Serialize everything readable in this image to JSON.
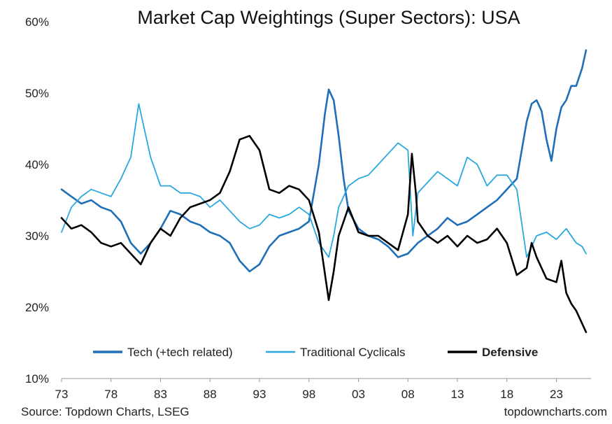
{
  "chart_data": {
    "type": "line",
    "title": "Market Cap Weightings (Super Sectors): USA",
    "xlabel": "",
    "ylabel": "",
    "xlim": [
      1973,
      2026.5
    ],
    "ylim": [
      10,
      60
    ],
    "x_ticks": [
      1973,
      1978,
      1983,
      1988,
      1993,
      1998,
      2003,
      2008,
      2013,
      2018,
      2023
    ],
    "x_tick_labels": [
      "73",
      "78",
      "83",
      "88",
      "93",
      "98",
      "03",
      "08",
      "13",
      "18",
      "23"
    ],
    "y_ticks": [
      10,
      20,
      30,
      40,
      50,
      60
    ],
    "y_tick_labels": [
      "10%",
      "20%",
      "30%",
      "40%",
      "50%",
      "60%"
    ],
    "grid": false,
    "legend_position": "bottom",
    "series": [
      {
        "name": "Tech (+tech related)",
        "color": "#1F6FB8",
        "bold": false,
        "points": [
          [
            1973,
            36.5
          ],
          [
            1974,
            35.5
          ],
          [
            1975,
            34.5
          ],
          [
            1976,
            35
          ],
          [
            1977,
            34
          ],
          [
            1978,
            33.5
          ],
          [
            1979,
            32
          ],
          [
            1980,
            29
          ],
          [
            1981,
            27.5
          ],
          [
            1982,
            29
          ],
          [
            1983,
            31
          ],
          [
            1984,
            33.5
          ],
          [
            1985,
            33
          ],
          [
            1986,
            32
          ],
          [
            1987,
            31.5
          ],
          [
            1988,
            30.5
          ],
          [
            1989,
            30
          ],
          [
            1990,
            29
          ],
          [
            1991,
            26.5
          ],
          [
            1992,
            25
          ],
          [
            1993,
            26
          ],
          [
            1994,
            28.5
          ],
          [
            1995,
            30
          ],
          [
            1996,
            30.5
          ],
          [
            1997,
            31
          ],
          [
            1998,
            32
          ],
          [
            1999,
            40
          ],
          [
            1999.6,
            47
          ],
          [
            2000,
            50.5
          ],
          [
            2000.5,
            49
          ],
          [
            2001,
            44
          ],
          [
            2001.5,
            38
          ],
          [
            2002,
            33.5
          ],
          [
            2003,
            31
          ],
          [
            2004,
            30
          ],
          [
            2005,
            29.5
          ],
          [
            2006,
            28.5
          ],
          [
            2007,
            27
          ],
          [
            2008,
            27.5
          ],
          [
            2009,
            29
          ],
          [
            2010,
            30
          ],
          [
            2011,
            31
          ],
          [
            2012,
            32.5
          ],
          [
            2013,
            31.5
          ],
          [
            2014,
            32
          ],
          [
            2015,
            33
          ],
          [
            2016,
            34
          ],
          [
            2017,
            35
          ],
          [
            2018,
            36.5
          ],
          [
            2019,
            38
          ],
          [
            2020,
            46
          ],
          [
            2020.5,
            48.5
          ],
          [
            2021,
            49
          ],
          [
            2021.5,
            47.5
          ],
          [
            2022,
            43.5
          ],
          [
            2022.5,
            40.5
          ],
          [
            2023,
            45
          ],
          [
            2023.5,
            48
          ],
          [
            2024,
            49
          ],
          [
            2024.5,
            51
          ],
          [
            2025,
            51
          ],
          [
            2025.6,
            53.5
          ],
          [
            2026,
            56
          ]
        ]
      },
      {
        "name": "Traditional Cyclicals",
        "color": "#29A8E0",
        "bold": false,
        "points": [
          [
            1973,
            30.5
          ],
          [
            1974,
            34
          ],
          [
            1975,
            35.5
          ],
          [
            1976,
            36.5
          ],
          [
            1977,
            36
          ],
          [
            1978,
            35.5
          ],
          [
            1979,
            38
          ],
          [
            1980,
            41
          ],
          [
            1980.8,
            48.5
          ],
          [
            1981.2,
            46
          ],
          [
            1982,
            41
          ],
          [
            1983,
            37
          ],
          [
            1984,
            37
          ],
          [
            1985,
            36
          ],
          [
            1986,
            36
          ],
          [
            1987,
            35.5
          ],
          [
            1988,
            34
          ],
          [
            1989,
            35
          ],
          [
            1990,
            33.5
          ],
          [
            1991,
            32
          ],
          [
            1992,
            31
          ],
          [
            1993,
            31.5
          ],
          [
            1994,
            33
          ],
          [
            1995,
            32.5
          ],
          [
            1996,
            33
          ],
          [
            1997,
            34
          ],
          [
            1998,
            33
          ],
          [
            1999,
            29
          ],
          [
            2000,
            27
          ],
          [
            2000.5,
            30
          ],
          [
            2001,
            34
          ],
          [
            2002,
            37
          ],
          [
            2003,
            38
          ],
          [
            2004,
            38.5
          ],
          [
            2005,
            40
          ],
          [
            2006,
            41.5
          ],
          [
            2007,
            43
          ],
          [
            2008,
            42
          ],
          [
            2008.5,
            30
          ],
          [
            2009,
            36
          ],
          [
            2010,
            37.5
          ],
          [
            2011,
            39
          ],
          [
            2012,
            38
          ],
          [
            2013,
            37
          ],
          [
            2014,
            41
          ],
          [
            2015,
            40
          ],
          [
            2016,
            37
          ],
          [
            2017,
            38.5
          ],
          [
            2018,
            38.5
          ],
          [
            2019,
            36.5
          ],
          [
            2020,
            27
          ],
          [
            2020.5,
            28.5
          ],
          [
            2021,
            30
          ],
          [
            2022,
            30.5
          ],
          [
            2023,
            29.5
          ],
          [
            2024,
            31
          ],
          [
            2025,
            29
          ],
          [
            2025.6,
            28.5
          ],
          [
            2026,
            27.5
          ]
        ]
      },
      {
        "name": "Defensive",
        "color": "#000000",
        "bold": true,
        "points": [
          [
            1973,
            32.5
          ],
          [
            1974,
            31
          ],
          [
            1975,
            31.5
          ],
          [
            1976,
            30.5
          ],
          [
            1977,
            29
          ],
          [
            1978,
            28.5
          ],
          [
            1979,
            29
          ],
          [
            1980,
            27.5
          ],
          [
            1981,
            26
          ],
          [
            1982,
            29
          ],
          [
            1983,
            31
          ],
          [
            1984,
            30
          ],
          [
            1985,
            32.5
          ],
          [
            1986,
            34
          ],
          [
            1987,
            34.5
          ],
          [
            1988,
            35
          ],
          [
            1989,
            36
          ],
          [
            1990,
            39
          ],
          [
            1991,
            43.5
          ],
          [
            1992,
            44
          ],
          [
            1993,
            42
          ],
          [
            1994,
            36.5
          ],
          [
            1995,
            36
          ],
          [
            1996,
            37
          ],
          [
            1997,
            36.5
          ],
          [
            1998,
            35
          ],
          [
            1999,
            30.5
          ],
          [
            2000,
            21
          ],
          [
            2000.5,
            25
          ],
          [
            2001,
            30
          ],
          [
            2002,
            34
          ],
          [
            2003,
            30.5
          ],
          [
            2004,
            30
          ],
          [
            2005,
            30
          ],
          [
            2006,
            29
          ],
          [
            2007,
            28
          ],
          [
            2008,
            33
          ],
          [
            2008.4,
            41.5
          ],
          [
            2008.8,
            36
          ],
          [
            2009,
            32
          ],
          [
            2010,
            30
          ],
          [
            2011,
            29
          ],
          [
            2012,
            30
          ],
          [
            2013,
            28.5
          ],
          [
            2014,
            30
          ],
          [
            2015,
            29
          ],
          [
            2016,
            29.5
          ],
          [
            2017,
            31
          ],
          [
            2018,
            29
          ],
          [
            2019,
            24.5
          ],
          [
            2020,
            25.5
          ],
          [
            2020.5,
            29
          ],
          [
            2021,
            27
          ],
          [
            2022,
            24
          ],
          [
            2023,
            23.5
          ],
          [
            2023.5,
            26.5
          ],
          [
            2024,
            22
          ],
          [
            2024.5,
            20.5
          ],
          [
            2025,
            19.5
          ],
          [
            2025.5,
            18
          ],
          [
            2026,
            16.5
          ]
        ]
      }
    ],
    "source": "Source: Topdown Charts, LSEG",
    "watermark": "topdowncharts.com"
  }
}
